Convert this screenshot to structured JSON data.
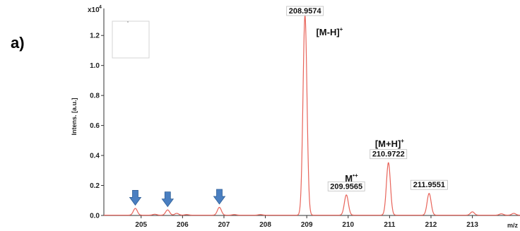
{
  "panel_label": "a)",
  "chart_data": {
    "type": "line",
    "xlabel": "m/z",
    "ylabel": "Intens. [a.u.]",
    "y_multiplier": "x10",
    "y_multiplier_exp": "4",
    "xlim": [
      204.1,
      214.15
    ],
    "ylim": [
      0,
      1.38
    ],
    "x_ticks": [
      205,
      206,
      207,
      208,
      209,
      210,
      211,
      212,
      213
    ],
    "y_ticks": [
      0.0,
      0.2,
      0.4,
      0.6,
      0.8,
      1.0,
      1.2
    ],
    "y_tick_labels": [
      "0.0",
      "0.2",
      "0.4",
      "0.6",
      "0.8",
      "1.0",
      "1.2"
    ],
    "line_color": "#e8645a",
    "series": [
      {
        "peaks": [
          {
            "x": 204.86,
            "y": 0.045
          },
          {
            "x": 205.33,
            "y": 0.006
          },
          {
            "x": 205.64,
            "y": 0.035
          },
          {
            "x": 205.86,
            "y": 0.012
          },
          {
            "x": 206.1,
            "y": 0.004
          },
          {
            "x": 206.89,
            "y": 0.052
          },
          {
            "x": 207.25,
            "y": 0.004
          },
          {
            "x": 207.88,
            "y": 0.004
          },
          {
            "x": 208.9574,
            "y": 1.33
          },
          {
            "x": 209.9565,
            "y": 0.135
          },
          {
            "x": 210.9722,
            "y": 0.35
          },
          {
            "x": 211.9551,
            "y": 0.145
          },
          {
            "x": 213.0,
            "y": 0.022
          },
          {
            "x": 213.7,
            "y": 0.009
          },
          {
            "x": 214.0,
            "y": 0.012
          }
        ]
      }
    ],
    "peak_labels": [
      {
        "x": 208.9574,
        "y": 1.33,
        "text": "208.9574"
      },
      {
        "x": 209.9565,
        "y": 0.135,
        "text": "209.9565"
      },
      {
        "x": 210.9722,
        "y": 0.35,
        "text": "210.9722"
      },
      {
        "x": 211.9551,
        "y": 0.145,
        "text": "211.9551"
      }
    ],
    "ion_labels": [
      {
        "base": "[M-H]",
        "sup": "+",
        "x": 209.55,
        "y": 1.2
      },
      {
        "base": "M",
        "sup": "•+",
        "x": 210.08,
        "y": 0.16
      },
      {
        "base": "[M+H]",
        "sup": "+",
        "x": 211.0,
        "y": 0.39
      }
    ],
    "arrows": [
      {
        "x": 204.86,
        "y": 0.045,
        "color": "#4a7fc1"
      },
      {
        "x": 205.64,
        "y": 0.035,
        "color": "#4a7fc1"
      },
      {
        "x": 206.89,
        "y": 0.052,
        "color": "#4a7fc1"
      }
    ],
    "legend_placement": "top-left",
    "grid": false
  }
}
